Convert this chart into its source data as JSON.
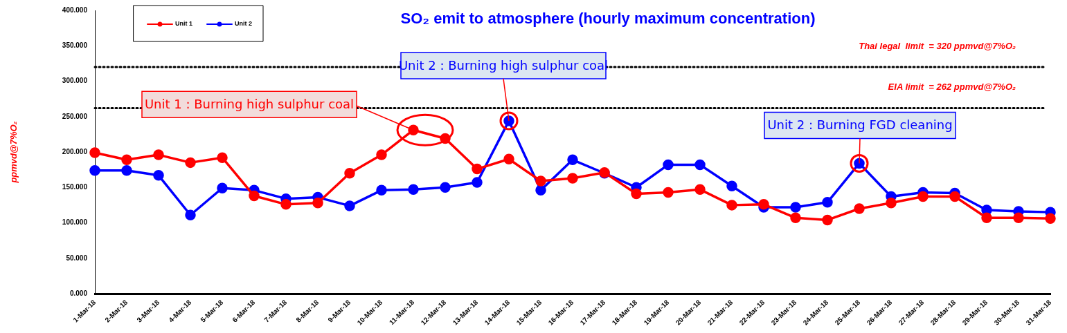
{
  "chart_data": {
    "type": "line",
    "title": "SO₂ emit to atmosphere (hourly maximum concentration)",
    "ylabel": "ppmvd@7%O₂",
    "categories": [
      "1-Mar-18",
      "2-Mar-18",
      "3-Mar-18",
      "4-Mar-18",
      "5-Mar-18",
      "6-Mar-18",
      "7-Mar-18",
      "8-Mar-18",
      "9-Mar-18",
      "10-Mar-18",
      "11-Mar-18",
      "12-Mar-18",
      "13-Mar-18",
      "14-Mar-18",
      "15-Mar-18",
      "16-Mar-18",
      "17-Mar-18",
      "18-Mar-18",
      "19-Mar-18",
      "20-Mar-18",
      "21-Mar-18",
      "22-Mar-18",
      "23-Mar-18",
      "24-Mar-18",
      "25-Mar-18",
      "26-Mar-18",
      "27-Mar-18",
      "28-Mar-18",
      "29-Mar-18",
      "30-Mar-18",
      "31-Mar-18"
    ],
    "series": [
      {
        "name": "Unit 1",
        "color": "#ff0000",
        "values": [
          199,
          189,
          196,
          185,
          192,
          138,
          126,
          128,
          170,
          196,
          231,
          219,
          176,
          190,
          159,
          163,
          171,
          141,
          143,
          147,
          125,
          126,
          107,
          104,
          120,
          128,
          137,
          137,
          107,
          107,
          106
        ]
      },
      {
        "name": "Unit 2",
        "color": "#0000ff",
        "values": [
          174,
          174,
          167,
          111,
          149,
          146,
          134,
          136,
          124,
          146,
          147,
          150,
          157,
          244,
          146,
          189,
          170,
          150,
          182,
          182,
          152,
          122,
          122,
          129,
          184,
          137,
          143,
          142,
          118,
          116,
          115
        ]
      }
    ],
    "ylim": [
      0,
      400
    ],
    "yticks": [
      {
        "value": 0,
        "label": "0.000"
      },
      {
        "value": 50,
        "label": "50.000"
      },
      {
        "value": 100,
        "label": "100.000"
      },
      {
        "value": 150,
        "label": "150.000"
      },
      {
        "value": 200,
        "label": "200.000"
      },
      {
        "value": 250,
        "label": "250.000"
      },
      {
        "value": 300,
        "label": "300.000"
      },
      {
        "value": 350,
        "label": "350.000"
      },
      {
        "value": 400,
        "label": "400.000"
      }
    ],
    "ref_lines": [
      {
        "axis": "y",
        "value": 320,
        "label": "Thai legal  limit  = 320 ppmvd@7%O₂",
        "color": "#000000",
        "line_style": "dotted"
      },
      {
        "axis": "y",
        "value": 262,
        "label": "EIA limit  = 262 ppmvd@7%O₂",
        "color": "#000000",
        "line_style": "dotted"
      }
    ],
    "annotations": [
      {
        "text": "Unit 1 : Burning high sulphur coal",
        "x": "11-Mar-18",
        "y": 231
      },
      {
        "text": "Unit 2 : Burning high sulphur coal",
        "x": "14-Mar-18",
        "y": 244
      },
      {
        "text": "Unit 2 : Burning FGD cleaning",
        "x": "25-Mar-18",
        "y": 184
      }
    ],
    "legend": "top left",
    "marker": "circle",
    "line_style": "solid",
    "grid": false
  }
}
